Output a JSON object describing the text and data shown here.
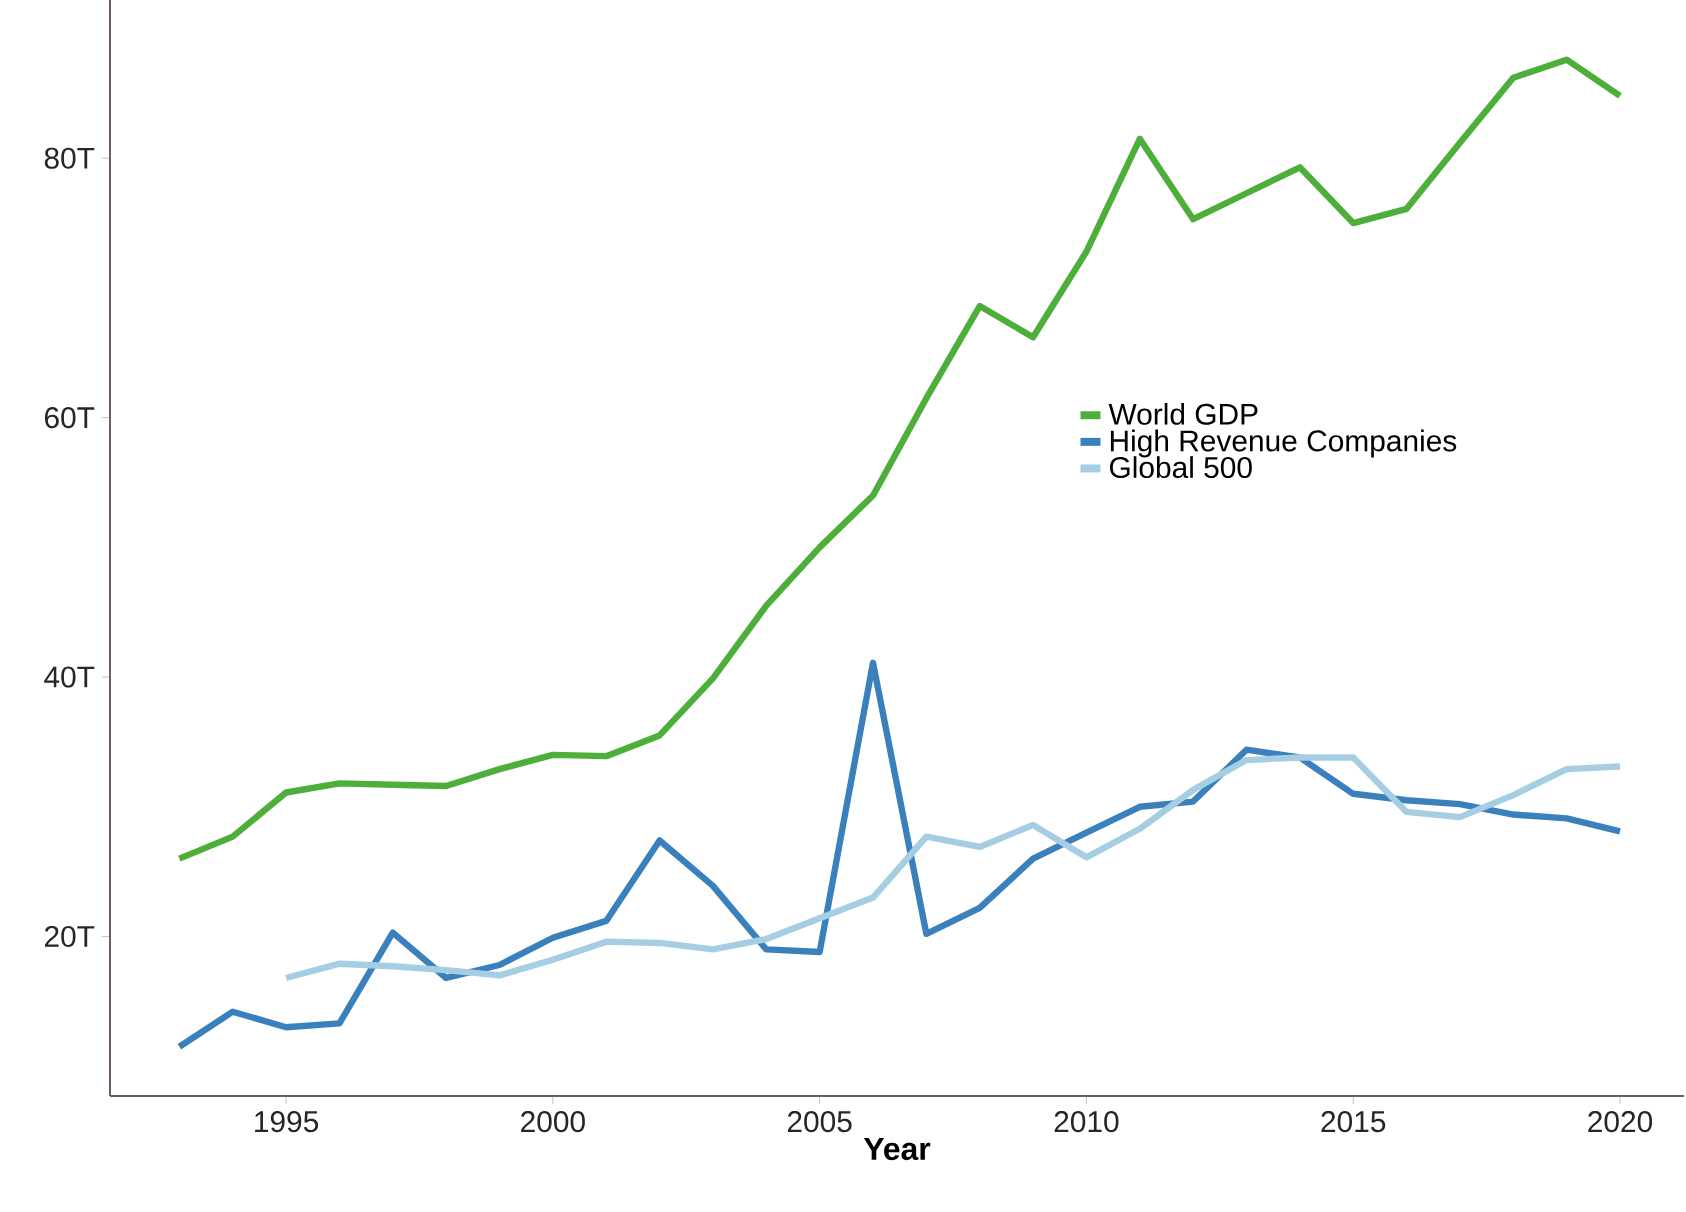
{
  "chart_data": {
    "type": "line",
    "xlabel": "Year",
    "x": [
      1993,
      1994,
      1995,
      1996,
      1997,
      1998,
      1999,
      2000,
      2001,
      2002,
      2003,
      2004,
      2005,
      2006,
      2007,
      2008,
      2009,
      2010,
      2011,
      2012,
      2013,
      2014,
      2015,
      2016,
      2017,
      2018,
      2019,
      2020
    ],
    "series": [
      {
        "name": "World GDP",
        "color": "#4daf3a",
        "values": [
          26,
          27.7,
          31.1,
          31.8,
          31.7,
          31.6,
          32.9,
          34.0,
          33.9,
          35.5,
          39.9,
          45.5,
          50,
          54,
          61.5,
          68.6,
          66.2,
          72.8,
          81.5,
          75.3,
          77.3,
          79.3,
          75.0,
          76.1,
          81.2,
          86.2,
          87.6,
          84.8
        ]
      },
      {
        "name": "High Revenue Companies",
        "color": "#3a80bd",
        "values": [
          11.5,
          14.2,
          13.0,
          13.3,
          20.3,
          16.8,
          17.8,
          19.9,
          21.2,
          27.4,
          23.9,
          19.0,
          18.8,
          41.1,
          20.2,
          22.2,
          26.0,
          28.0,
          30.0,
          30.4,
          34.4,
          33.8,
          31.0,
          30.5,
          30.2,
          29.4,
          29.1,
          28.1
        ]
      },
      {
        "name": "Global 500",
        "color": "#a6cee3",
        "values": [
          null,
          null,
          16.8,
          17.9,
          17.7,
          17.4,
          17.0,
          18.2,
          19.6,
          19.5,
          19.0,
          19.8,
          21.4,
          23.0,
          27.7,
          26.9,
          28.6,
          26.1,
          28.3,
          31.3,
          33.6,
          33.8,
          33.8,
          29.6,
          29.2,
          30.9,
          32.9,
          33.1
        ]
      }
    ],
    "xlim": [
      1991.7,
      2021.2
    ],
    "ylim": [
      7.7,
      92.2
    ],
    "xticks": [
      1995,
      2000,
      2005,
      2010,
      2015,
      2020
    ],
    "yticks": [
      {
        "value": 20,
        "label": "20T"
      },
      {
        "value": 40,
        "label": "40T"
      },
      {
        "value": 60,
        "label": "60T"
      },
      {
        "value": 80,
        "label": "80T"
      }
    ],
    "legend": "right",
    "grid": false,
    "marker": "none",
    "line_style": "solid"
  }
}
